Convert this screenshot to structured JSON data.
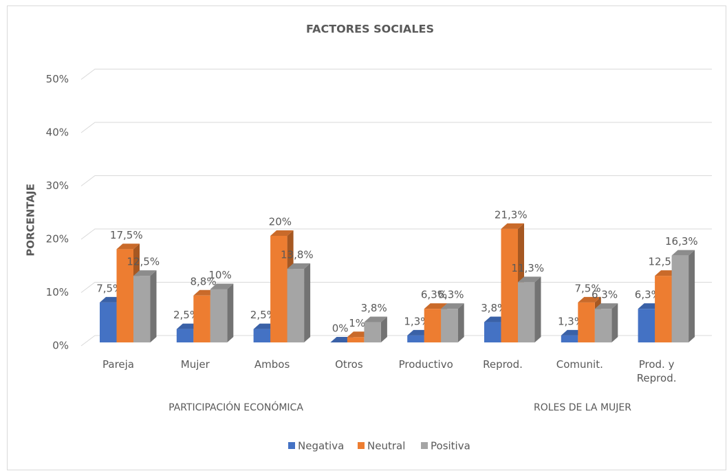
{
  "chart_data": {
    "type": "bar3d",
    "title": "FACTORES SOCIALES",
    "y_label": "PORCENTAJE",
    "categories": [
      "Pareja",
      "Mujer",
      "Ambos",
      "Otros",
      "Productivo",
      "Reprod.",
      "Comunit.",
      "Prod. y Reprod."
    ],
    "groups": [
      {
        "label": "PARTICIPACIÓN ECONÓMICA",
        "span": [
          0,
          3
        ]
      },
      {
        "label": "ROLES DE LA MUJER",
        "span": [
          4,
          7
        ]
      }
    ],
    "series": [
      {
        "name": "Negativa",
        "color": "#4472c4",
        "values": [
          7.5,
          2.5,
          2.5,
          0,
          1.3,
          3.8,
          1.3,
          6.3
        ],
        "value_labels": [
          "7,5%",
          "2,5%",
          "2,5%",
          "0%",
          "1,3%",
          "3,8%",
          "1,3%",
          "6,3%"
        ]
      },
      {
        "name": "Neutral",
        "color": "#ed7d31",
        "values": [
          17.5,
          8.8,
          20,
          1,
          6.3,
          21.3,
          7.5,
          12.5
        ],
        "value_labels": [
          "17,5%",
          "8,8%",
          "20%",
          "1%",
          "6,3%",
          "21,3%",
          "7,5%",
          "12,5%"
        ]
      },
      {
        "name": "Positiva",
        "color": "#a5a5a5",
        "values": [
          12.5,
          10,
          13.8,
          3.8,
          6.3,
          11.3,
          6.3,
          16.3
        ],
        "value_labels": [
          "12,5%",
          "10%",
          "13,8%",
          "3,8%",
          "6,3%",
          "11,3%",
          "6,3%",
          "16,3%"
        ]
      }
    ],
    "ylim": [
      0,
      50
    ],
    "yticks": [
      {
        "value": 0,
        "label": "0%"
      },
      {
        "value": 10,
        "label": "10%"
      },
      {
        "value": 20,
        "label": "20%"
      },
      {
        "value": 30,
        "label": "30%"
      },
      {
        "value": 40,
        "label": "40%"
      },
      {
        "value": 50,
        "label": "50%"
      }
    ],
    "grid": true,
    "legend": "bottom"
  }
}
